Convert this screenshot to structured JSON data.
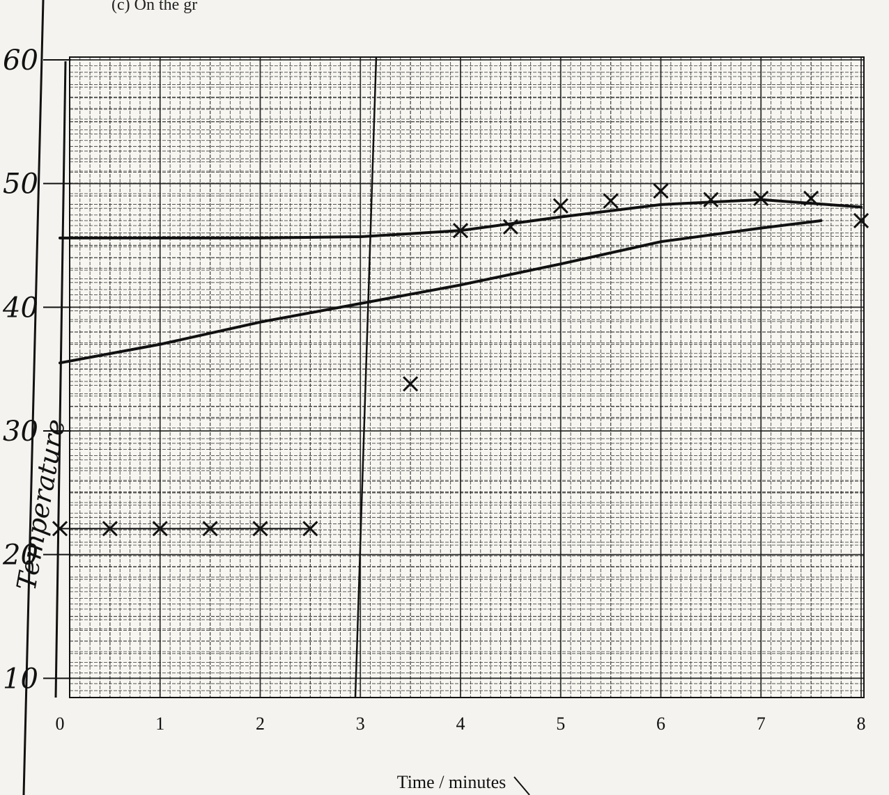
{
  "header_fragment": "(c) On the gr",
  "chart_data": {
    "type": "scatter",
    "title": "",
    "xlabel": "Time / minutes",
    "ylabel": "Temperature",
    "xlim": [
      0,
      8
    ],
    "ylim": [
      0,
      60
    ],
    "x_ticks": [
      "0",
      "1",
      "2",
      "3",
      "4",
      "5",
      "6",
      "7",
      "8"
    ],
    "y_ticks": [
      "10",
      "20",
      "30",
      "40",
      "50",
      "60"
    ],
    "y_tick_values": [
      10,
      20,
      30,
      40,
      50,
      60
    ],
    "grid": true,
    "series": [
      {
        "points": [
          {
            "x": 0,
            "y": 22.1
          },
          {
            "x": 0.5,
            "y": 22.1
          },
          {
            "x": 1,
            "y": 22.1
          },
          {
            "x": 1.5,
            "y": 22.1
          },
          {
            "x": 2,
            "y": 22.1
          },
          {
            "x": 2.5,
            "y": 22.1
          }
        ]
      },
      {
        "points": [
          {
            "x": 3.5,
            "y": 33.8
          },
          {
            "x": 4,
            "y": 46.2
          },
          {
            "x": 4.5,
            "y": 46.5
          },
          {
            "x": 5,
            "y": 48.2
          },
          {
            "x": 5.5,
            "y": 48.6
          },
          {
            "x": 6,
            "y": 49.4
          },
          {
            "x": 6.5,
            "y": 48.7
          },
          {
            "x": 7,
            "y": 48.8
          },
          {
            "x": 7.5,
            "y": 48.8
          },
          {
            "x": 8,
            "y": 47.0
          }
        ]
      }
    ],
    "lines": [
      {
        "points": [
          {
            "x": 0,
            "y": 22.1
          },
          {
            "x": 2.5,
            "y": 22.1
          }
        ]
      },
      {
        "points": [
          {
            "x": 0,
            "y": 45.6
          },
          {
            "x": 2,
            "y": 45.6
          },
          {
            "x": 3,
            "y": 45.7
          },
          {
            "x": 4,
            "y": 46.2
          },
          {
            "x": 5,
            "y": 47.3
          },
          {
            "x": 6,
            "y": 48.3
          },
          {
            "x": 7,
            "y": 48.7
          },
          {
            "x": 8,
            "y": 48.1
          }
        ]
      },
      {
        "points": [
          {
            "x": 0,
            "y": 35.5
          },
          {
            "x": 1,
            "y": 37.0
          },
          {
            "x": 2,
            "y": 38.8
          },
          {
            "x": 3,
            "y": 40.3
          },
          {
            "x": 4,
            "y": 41.8
          },
          {
            "x": 5,
            "y": 43.5
          },
          {
            "x": 6,
            "y": 45.3
          },
          {
            "x": 7,
            "y": 46.4
          },
          {
            "x": 7.6,
            "y": 47.0
          }
        ]
      }
    ]
  }
}
